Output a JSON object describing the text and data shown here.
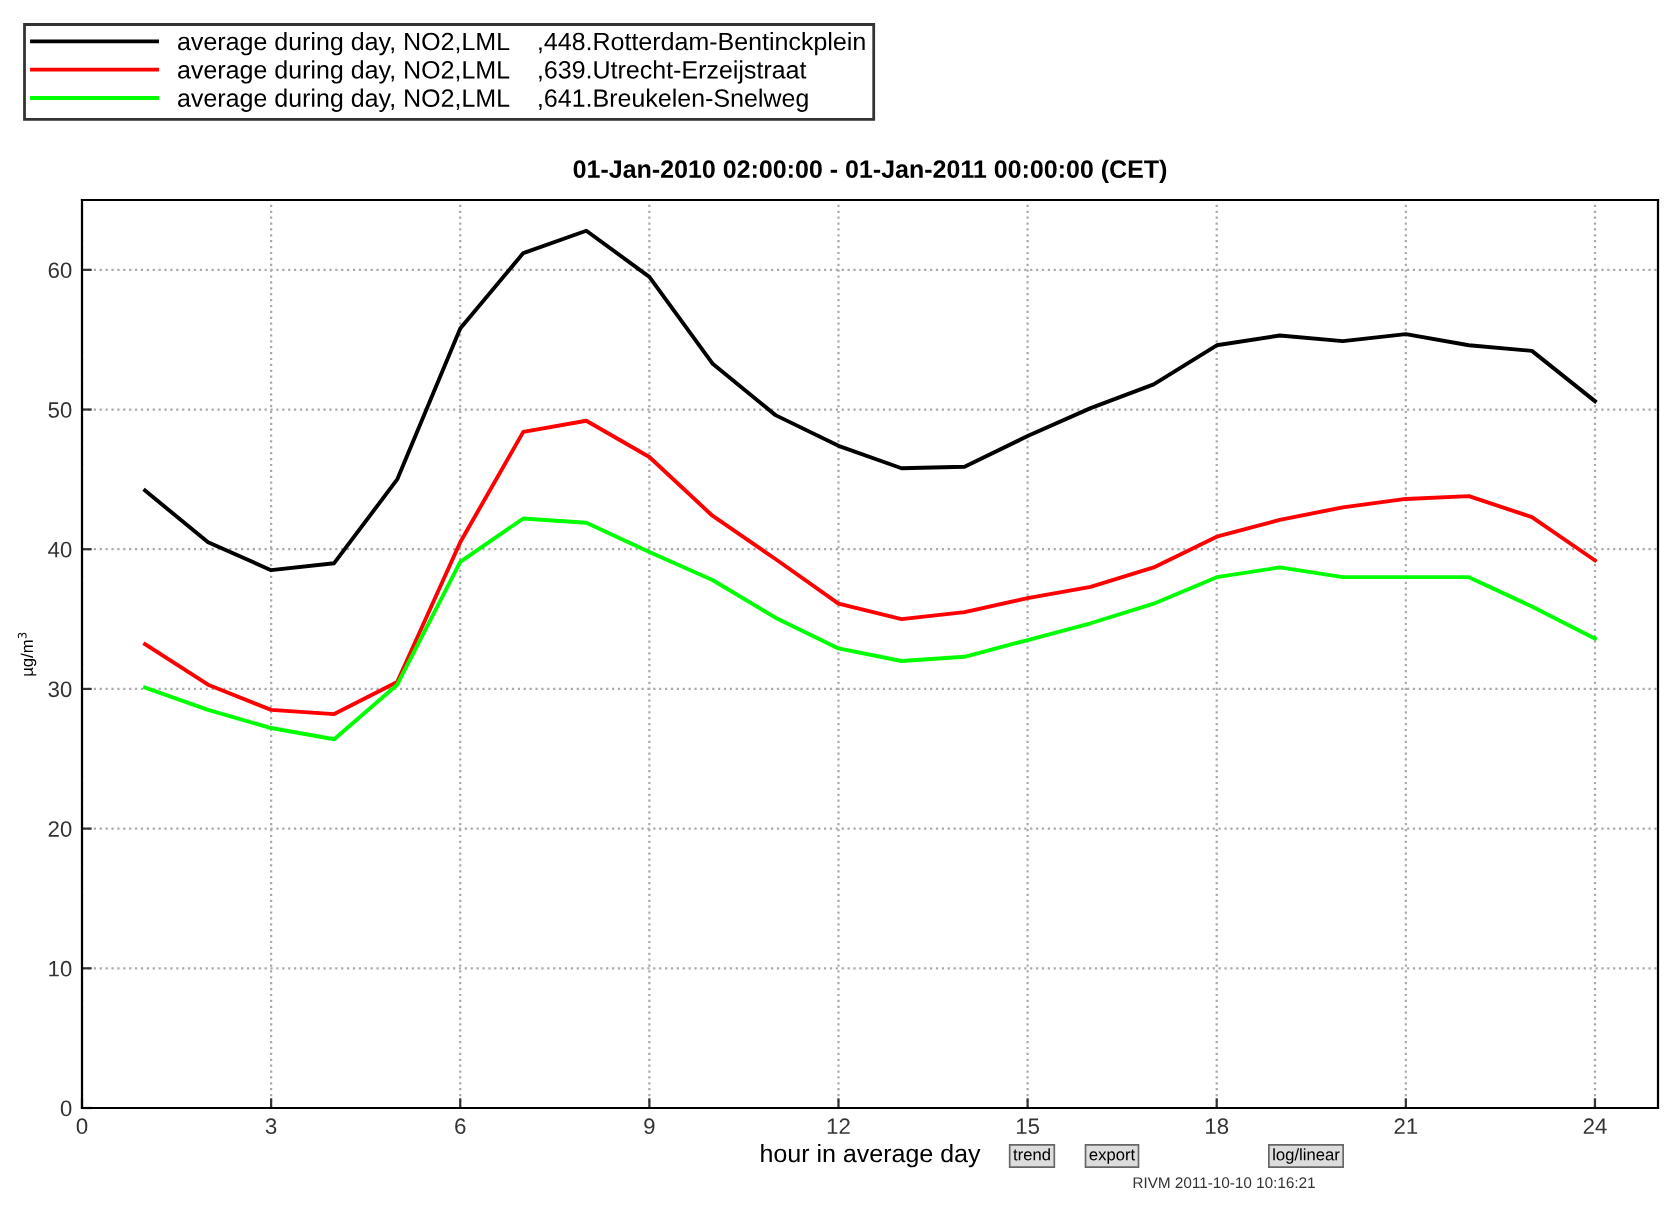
{
  "chart_data": {
    "type": "line",
    "title": "01-Jan-2010 02:00:00 - 01-Jan-2011 00:00:00 (CET)",
    "xlabel": "hour in average day",
    "ylabel": "µg/m$^{3}$",
    "x": [
      1,
      2,
      3,
      4,
      5,
      6,
      7,
      8,
      9,
      10,
      11,
      12,
      13,
      14,
      15,
      16,
      17,
      18,
      19,
      20,
      21,
      22,
      23,
      24
    ],
    "series": [
      {
        "name": "average during day, NO2,LML    ,448.Rotterdam-Bentinckplein",
        "color": "#000000",
        "values": [
          44.2,
          40.5,
          38.5,
          39,
          45,
          55.8,
          61.2,
          62.8,
          59.5,
          53.3,
          49.6,
          47.4,
          45.8,
          45.9,
          48.1,
          50.1,
          51.8,
          54.6,
          55.3,
          54.9,
          55.4,
          54.6,
          54.2,
          50.6
        ]
      },
      {
        "name": "average during day, NO2,LML    ,639.Utrecht-Erzeijstraat",
        "color": "#ff0000",
        "values": [
          33.2,
          30.3,
          28.5,
          28.2,
          30.5,
          40.5,
          48.4,
          49.2,
          46.6,
          42.4,
          39.3,
          36.1,
          35,
          35.5,
          36.5,
          37.3,
          38.7,
          40.9,
          42.1,
          43,
          43.6,
          43.8,
          42.3,
          39.2
        ]
      },
      {
        "name": "average during day, NO2,LML    ,641.Breukelen-Snelweg",
        "color": "#00ff00",
        "values": [
          30.1,
          28.5,
          27.2,
          26.4,
          30.3,
          39.1,
          42.2,
          41.9,
          39.8,
          37.8,
          35.1,
          32.9,
          32,
          32.3,
          33.5,
          34.7,
          36.1,
          38,
          38.7,
          38,
          38,
          38,
          35.9,
          33.6
        ]
      }
    ],
    "xlim": [
      0,
      25
    ],
    "ylim": [
      0,
      65
    ],
    "xticks": [
      0,
      3,
      6,
      9,
      12,
      15,
      18,
      21,
      24
    ],
    "yticks": [
      0,
      10,
      20,
      30,
      40,
      50,
      60
    ],
    "grid": true,
    "legend": "top left",
    "marker": "none",
    "line_style": "solid",
    "annotations": [
      "trend",
      "export",
      "log/linear",
      "RIVM 2011-10-10 10:16:21"
    ]
  }
}
